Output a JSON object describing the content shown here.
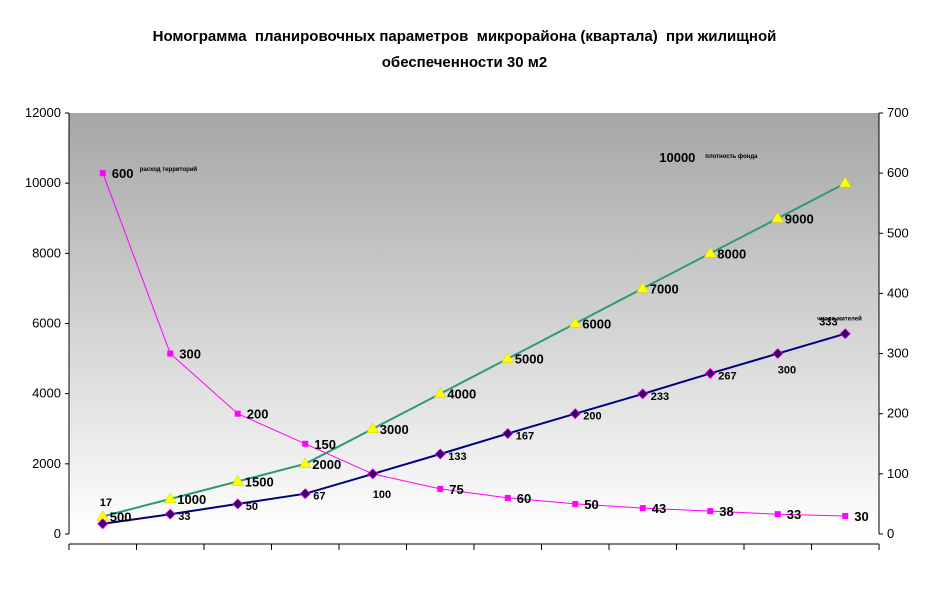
{
  "chart_data": {
    "type": "line",
    "title_line1": "Номограмма  планировочных параметров  микрорайона (квартала)  при жилищной",
    "title_line2": "обеспеченности 30 м2",
    "x_count": 12,
    "left_axis": {
      "ylim": [
        0,
        12000
      ],
      "ticks": [
        "0",
        "2000",
        "4000",
        "6000",
        "8000",
        "10000",
        "12000"
      ]
    },
    "right_axis": {
      "ylim": [
        0,
        700
      ],
      "ticks": [
        "0",
        "100",
        "200",
        "300",
        "400",
        "500",
        "600",
        "700"
      ]
    },
    "grid": false,
    "series": [
      {
        "name": "плотность фонда",
        "axis": "left",
        "color": "#2e9b72",
        "marker": "triangle",
        "marker_color": "#ffff00",
        "values": [
          500,
          1000,
          1500,
          2000,
          3000,
          4000,
          5000,
          6000,
          7000,
          8000,
          9000,
          10000
        ],
        "labels": [
          "500",
          "1000",
          "1500",
          "2000",
          "3000",
          "4000",
          "5000",
          "6000",
          "7000",
          "8000",
          "9000",
          "10000"
        ]
      },
      {
        "name": "расход территорий",
        "axis": "right",
        "color": "#ff00ff",
        "marker": "square",
        "marker_color": "#ff00ff",
        "values": [
          600,
          300,
          200,
          150,
          100,
          75,
          60,
          50,
          43,
          38,
          33,
          30
        ],
        "labels": [
          "600",
          "300",
          "200",
          "150",
          "",
          "75",
          "60",
          "50",
          "43",
          "38",
          "33",
          "30"
        ]
      },
      {
        "name": "число жителей",
        "axis": "right",
        "color": "#000080",
        "marker": "diamond",
        "marker_color": "#330066",
        "values": [
          17,
          33,
          50,
          67,
          100,
          133,
          167,
          200,
          233,
          267,
          300,
          333
        ],
        "labels": [
          "17",
          "33",
          "50",
          "67",
          "100",
          "133",
          "167",
          "200",
          "233",
          "267",
          "300",
          "333"
        ]
      }
    ]
  }
}
